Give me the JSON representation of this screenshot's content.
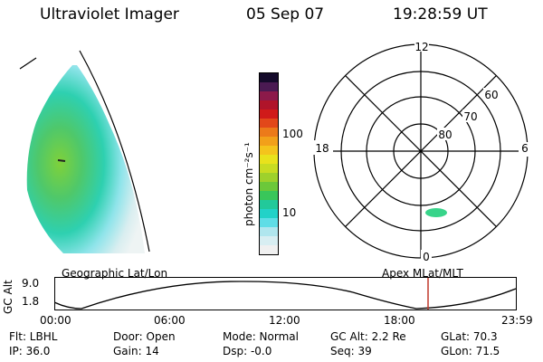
{
  "header": {
    "title": "Ultraviolet Imager",
    "date": "05 Sep 07",
    "time": "19:28:59 UT"
  },
  "colorbar": {
    "label": "photon cm⁻²s⁻¹",
    "ticks": [
      "100",
      "10"
    ],
    "colors": [
      "#f0f0f0",
      "#d8eef2",
      "#b0e6ee",
      "#5fdde6",
      "#22d2c8",
      "#22c99a",
      "#39c65a",
      "#6cc83a",
      "#9ed12c",
      "#c8dc22",
      "#e9e21c",
      "#f4c41c",
      "#f2a01a",
      "#ec7a1a",
      "#e2481a",
      "#d01a1a",
      "#b0142a",
      "#8c1a4a",
      "#4a1a52",
      "#140a2a"
    ]
  },
  "polar": {
    "clock_labels": {
      "top": "12",
      "left": "18",
      "right": "6",
      "bottom": "0"
    },
    "lat_labels": [
      "60",
      "70",
      "80"
    ],
    "blob_color": "#38d48a"
  },
  "orbit": {
    "axis_title": "GC Alt",
    "y_ticks": [
      "9.0",
      "1.8"
    ],
    "left_label": "Geographic Lat/Lon",
    "right_label": "Apex MLat/MLT",
    "x_ticks": [
      "00:00",
      "06:00",
      "12:00",
      "18:00",
      "23:59"
    ],
    "marker_color": "#c0392b"
  },
  "info": {
    "row1": [
      "Flt: LBHL",
      "Door: Open",
      "Mode: Normal",
      "GC Alt: 2.2 Re",
      "GLat: 70.3"
    ],
    "row2": [
      "IP: 36.0",
      "Gain: 14",
      "Dsp: -0.0",
      "Seq: 39",
      "GLon: 71.5"
    ]
  }
}
